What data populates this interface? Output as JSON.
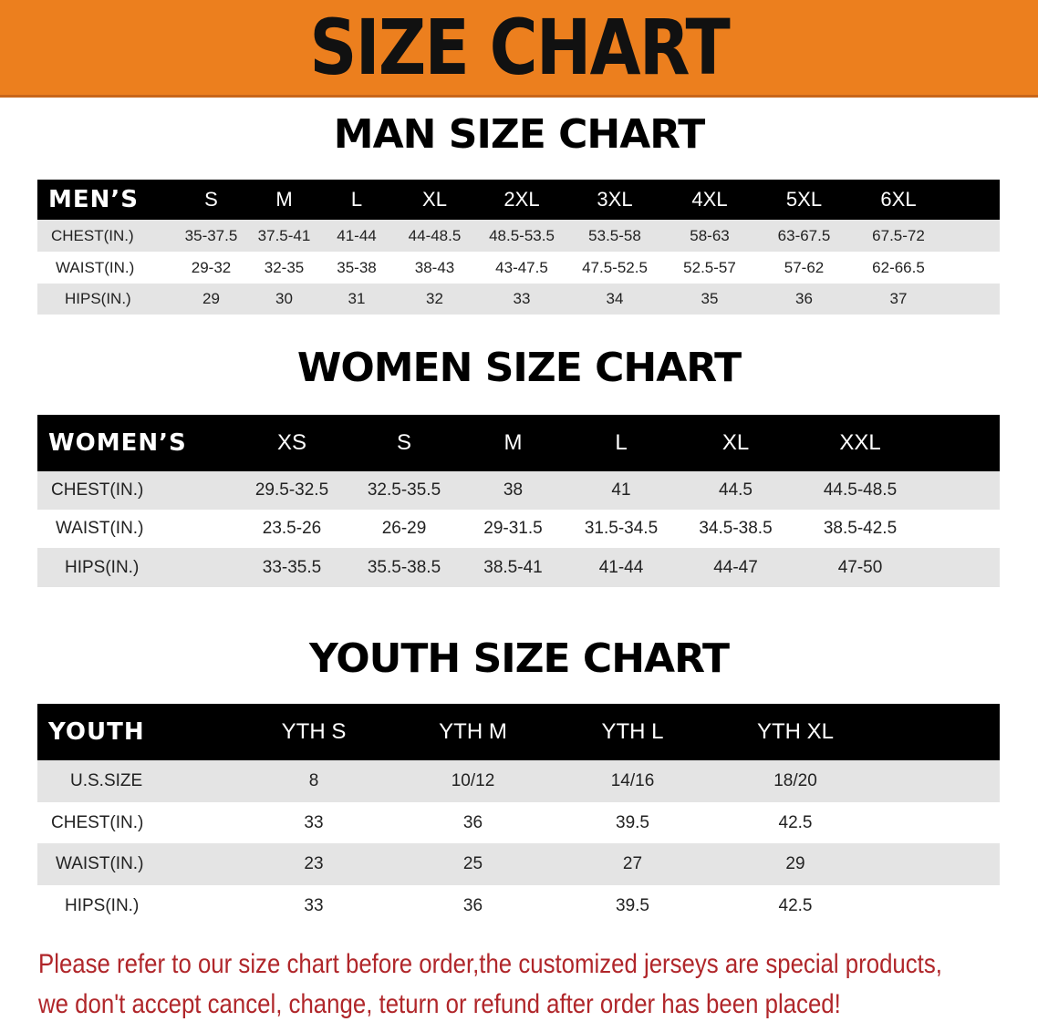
{
  "banner": {
    "title": "SIZE CHART",
    "color": "#ec7f1e"
  },
  "men": {
    "title": "MAN SIZE CHART",
    "header": [
      "MEN’S",
      "S",
      "M",
      "L",
      "XL",
      "2XL",
      "3XL",
      "4XL",
      "5XL",
      "6XL"
    ],
    "rows": [
      [
        "CHEST(IN.)",
        "35-37.5",
        "37.5-41",
        "41-44",
        "44-48.5",
        "48.5-53.5",
        "53.5-58",
        "58-63",
        "63-67.5",
        "67.5-72"
      ],
      [
        "WAIST(IN.)",
        "29-32",
        "32-35",
        "35-38",
        "38-43",
        "43-47.5",
        "47.5-52.5",
        "52.5-57",
        "57-62",
        "62-66.5"
      ],
      [
        "HIPS(IN.)",
        "29",
        "30",
        "31",
        "32",
        "33",
        "34",
        "35",
        "36",
        "37"
      ]
    ]
  },
  "women": {
    "title": "WOMEN SIZE CHART",
    "header": [
      "WOMEN’S",
      "XS",
      "S",
      "M",
      "L",
      "XL",
      "XXL"
    ],
    "rows": [
      [
        "CHEST(IN.)",
        "29.5-32.5",
        "32.5-35.5",
        "38",
        "41",
        "44.5",
        "44.5-48.5"
      ],
      [
        "WAIST(IN.)",
        "23.5-26",
        "26-29",
        "29-31.5",
        "31.5-34.5",
        "34.5-38.5",
        "38.5-42.5"
      ],
      [
        "HIPS(IN.)",
        "33-35.5",
        "35.5-38.5",
        "38.5-41",
        "41-44",
        "44-47",
        "47-50"
      ]
    ]
  },
  "youth": {
    "title": "YOUTH SIZE CHART",
    "header": [
      "YOUTH",
      "YTH S",
      "YTH M",
      "YTH L",
      "YTH XL"
    ],
    "rows": [
      [
        "U.S.SIZE",
        "8",
        "10/12",
        "14/16",
        "18/20"
      ],
      [
        "CHEST(IN.)",
        "33",
        "36",
        "39.5",
        "42.5"
      ],
      [
        "WAIST(IN.)",
        "23",
        "25",
        "27",
        "29"
      ],
      [
        "HIPS(IN.)",
        "33",
        "36",
        "39.5",
        "42.5"
      ]
    ]
  },
  "note": {
    "line1": "Please refer to our size chart before order,the customized jerseys are special products,",
    "line2": "we don't accept cancel, change, teturn or refund after order has been placed!",
    "color": "#b0262a"
  }
}
